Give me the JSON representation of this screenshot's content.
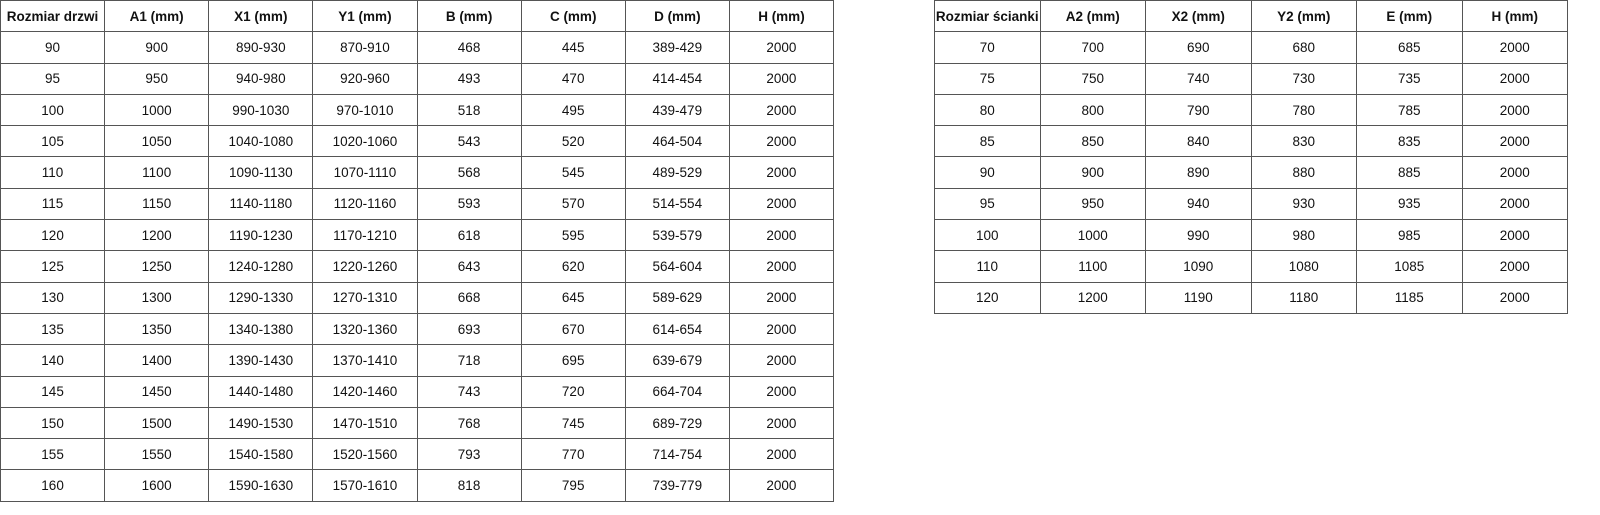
{
  "doors_table": {
    "headers": [
      "Rozmiar drzwi",
      "A1 (mm)",
      "X1 (mm)",
      "Y1 (mm)",
      "B (mm)",
      "C (mm)",
      "D (mm)",
      "H (mm)"
    ],
    "rows": [
      [
        "90",
        "900",
        "890-930",
        "870-910",
        "468",
        "445",
        "389-429",
        "2000"
      ],
      [
        "95",
        "950",
        "940-980",
        "920-960",
        "493",
        "470",
        "414-454",
        "2000"
      ],
      [
        "100",
        "1000",
        "990-1030",
        "970-1010",
        "518",
        "495",
        "439-479",
        "2000"
      ],
      [
        "105",
        "1050",
        "1040-1080",
        "1020-1060",
        "543",
        "520",
        "464-504",
        "2000"
      ],
      [
        "110",
        "1100",
        "1090-1130",
        "1070-1110",
        "568",
        "545",
        "489-529",
        "2000"
      ],
      [
        "115",
        "1150",
        "1140-1180",
        "1120-1160",
        "593",
        "570",
        "514-554",
        "2000"
      ],
      [
        "120",
        "1200",
        "1190-1230",
        "1170-1210",
        "618",
        "595",
        "539-579",
        "2000"
      ],
      [
        "125",
        "1250",
        "1240-1280",
        "1220-1260",
        "643",
        "620",
        "564-604",
        "2000"
      ],
      [
        "130",
        "1300",
        "1290-1330",
        "1270-1310",
        "668",
        "645",
        "589-629",
        "2000"
      ],
      [
        "135",
        "1350",
        "1340-1380",
        "1320-1360",
        "693",
        "670",
        "614-654",
        "2000"
      ],
      [
        "140",
        "1400",
        "1390-1430",
        "1370-1410",
        "718",
        "695",
        "639-679",
        "2000"
      ],
      [
        "145",
        "1450",
        "1440-1480",
        "1420-1460",
        "743",
        "720",
        "664-704",
        "2000"
      ],
      [
        "150",
        "1500",
        "1490-1530",
        "1470-1510",
        "768",
        "745",
        "689-729",
        "2000"
      ],
      [
        "155",
        "1550",
        "1540-1580",
        "1520-1560",
        "793",
        "770",
        "714-754",
        "2000"
      ],
      [
        "160",
        "1600",
        "1590-1630",
        "1570-1610",
        "818",
        "795",
        "739-779",
        "2000"
      ]
    ]
  },
  "wall_table": {
    "headers": [
      "Rozmiar ścianki",
      "A2 (mm)",
      "X2 (mm)",
      "Y2 (mm)",
      "E (mm)",
      "H (mm)"
    ],
    "rows": [
      [
        "70",
        "700",
        "690",
        "680",
        "685",
        "2000"
      ],
      [
        "75",
        "750",
        "740",
        "730",
        "735",
        "2000"
      ],
      [
        "80",
        "800",
        "790",
        "780",
        "785",
        "2000"
      ],
      [
        "85",
        "850",
        "840",
        "830",
        "835",
        "2000"
      ],
      [
        "90",
        "900",
        "890",
        "880",
        "885",
        "2000"
      ],
      [
        "95",
        "950",
        "940",
        "930",
        "935",
        "2000"
      ],
      [
        "100",
        "1000",
        "990",
        "980",
        "985",
        "2000"
      ],
      [
        "110",
        "1100",
        "1090",
        "1080",
        "1085",
        "2000"
      ],
      [
        "120",
        "1200",
        "1190",
        "1180",
        "1185",
        "2000"
      ]
    ]
  }
}
